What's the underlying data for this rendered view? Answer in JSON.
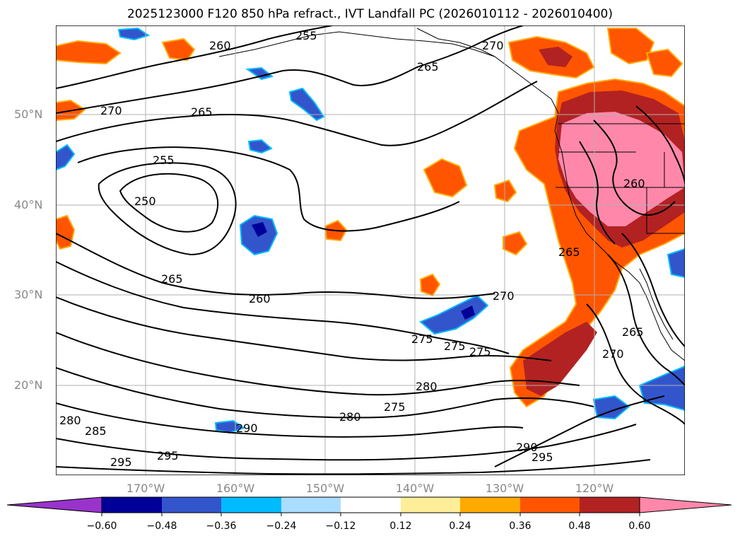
{
  "title": "2025123000 F120 850 hPa refract., IVT Landfall PC (2026010112 - 2026010400)",
  "lat_labels": [
    "50°N",
    "40°N",
    "30°N",
    "20°N"
  ],
  "lon_labels": [
    "170°W",
    "160°W",
    "150°W",
    "140°W",
    "130°W",
    "120°W"
  ],
  "contour_labels": [
    "255",
    "260",
    "265",
    "270",
    "265",
    "270",
    "255",
    "250",
    "265",
    "260",
    "270",
    "275",
    "275",
    "275",
    "280",
    "280",
    "275",
    "290",
    "295",
    "295",
    "285",
    "280",
    "290",
    "295",
    "270",
    "265",
    "265",
    "260"
  ],
  "colorbar": {
    "tick_labels": [
      "−0.60",
      "−0.48",
      "−0.36",
      "−0.24",
      "−0.12",
      "0.12",
      "0.24",
      "0.36",
      "0.48",
      "0.60"
    ],
    "colors": [
      "#9933cc",
      "#000099",
      "#3355cc",
      "#00bbff",
      "#aaddff",
      "#ffffff",
      "#ffee99",
      "#ffaa00",
      "#ff5500",
      "#b22222",
      "#ff88aa",
      "#ff88aa"
    ]
  },
  "colors": {
    "grid": "#b0b0b0",
    "contour": "#000000",
    "positive_strong": "#ff88aa",
    "positive_mid": "#b22222",
    "positive": "#ff5500",
    "negative": "#3355cc",
    "negative_strong": "#000099"
  }
}
